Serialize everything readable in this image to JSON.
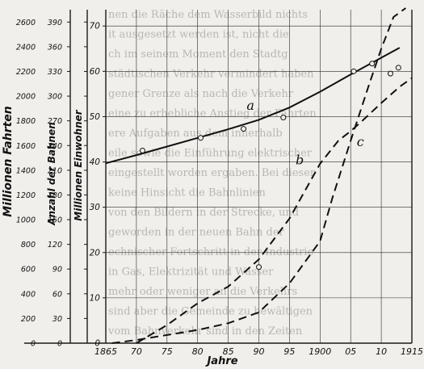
{
  "chart_data": {
    "type": "line",
    "xlabel": "Jahre",
    "x_ticks": [
      "1865",
      "70",
      "75",
      "80",
      "85",
      "90",
      "95",
      "1900",
      "05",
      "10",
      "1915"
    ],
    "xlim": [
      1865,
      1915
    ],
    "axes": [
      {
        "label": "Millionen Fahrten",
        "lim": [
          0,
          2700
        ],
        "ticks": [
          0,
          200,
          400,
          600,
          800,
          1000,
          1200,
          1400,
          1600,
          1800,
          2000,
          2200,
          2400,
          2600
        ]
      },
      {
        "label": "Anzahl der Bahnen",
        "lim": [
          0,
          405
        ],
        "ticks": [
          0,
          30,
          60,
          90,
          120,
          150,
          180,
          210,
          240,
          270,
          300,
          330,
          360,
          390
        ]
      },
      {
        "label": "Millionen Einwohner",
        "lim": [
          0,
          73.6
        ],
        "ticks": [
          0,
          10,
          20,
          30,
          40,
          50,
          60,
          70
        ]
      }
    ],
    "series": [
      {
        "name": "a",
        "style": "solid",
        "x": [
          1865,
          1870,
          1875,
          1880,
          1885,
          1890,
          1895,
          1900,
          1905,
          1910,
          1913
        ],
        "y": [
          39.7,
          41.5,
          43.4,
          45.3,
          47.2,
          49.3,
          52.0,
          55.5,
          59.3,
          63.0,
          65.2
        ],
        "points_x": [
          1871,
          1880.5,
          1887.5,
          1894,
          1905.5,
          1908.5,
          1911.5,
          1912.8
        ],
        "points_y": [
          42.5,
          45.3,
          47.3,
          49.8,
          60.0,
          61.7,
          59.5,
          60.8
        ]
      },
      {
        "name": "b",
        "style": "dashed",
        "x": [
          1870,
          1875,
          1880,
          1885,
          1890,
          1895,
          1900,
          1903,
          1905,
          1907,
          1910,
          1913,
          1915
        ],
        "y": [
          0,
          4.0,
          8.8,
          12.5,
          18.5,
          27.5,
          39.6,
          44.7,
          46.8,
          49.2,
          53.0,
          56.6,
          58.5
        ],
        "points_x": [
          1890
        ],
        "points_y": [
          16.8
        ]
      },
      {
        "name": "c",
        "style": "dashed",
        "x": [
          1866,
          1870,
          1875,
          1880,
          1885,
          1890,
          1895,
          1900,
          1902,
          1905,
          1908,
          1910,
          1912,
          1914
        ],
        "y": [
          0,
          0.7,
          1.8,
          2.9,
          4.4,
          6.8,
          13.2,
          22.5,
          32.0,
          44.7,
          57.0,
          65.0,
          72.0,
          76.5
        ],
        "points_x": [],
        "points_y": []
      }
    ]
  },
  "background_text": [
    "nen die Räche dem Wasserbild nichts",
    "it ausgesetzt werden ist, nicht die",
    "ch im seinem Moment den Stadtg",
    "städtischen Verkehr vermindert haben",
    "gener Grenze als nach die Verkehr",
    "eine zu erhebliche Anstieg der Fahrten",
    "ere Aufgaben aus dem innerhalb",
    "eile sowie die Einführung elektrischer",
    "eingestellt worden ergaben. Bei dieser",
    "keine Hinsicht die Bahnlinien",
    "von den Bildern in der Strecke, und",
    "geworden in der neuen Bahn der",
    "echnischer Fortschritt in der Industrie",
    "in Gas, Elektrizität und Wasser",
    "mehr oder weniger an die Verkehrs",
    "sind aber die Gemeinde zu bewältigen",
    "vom Bahnverkehr sind in den Zeiten"
  ]
}
